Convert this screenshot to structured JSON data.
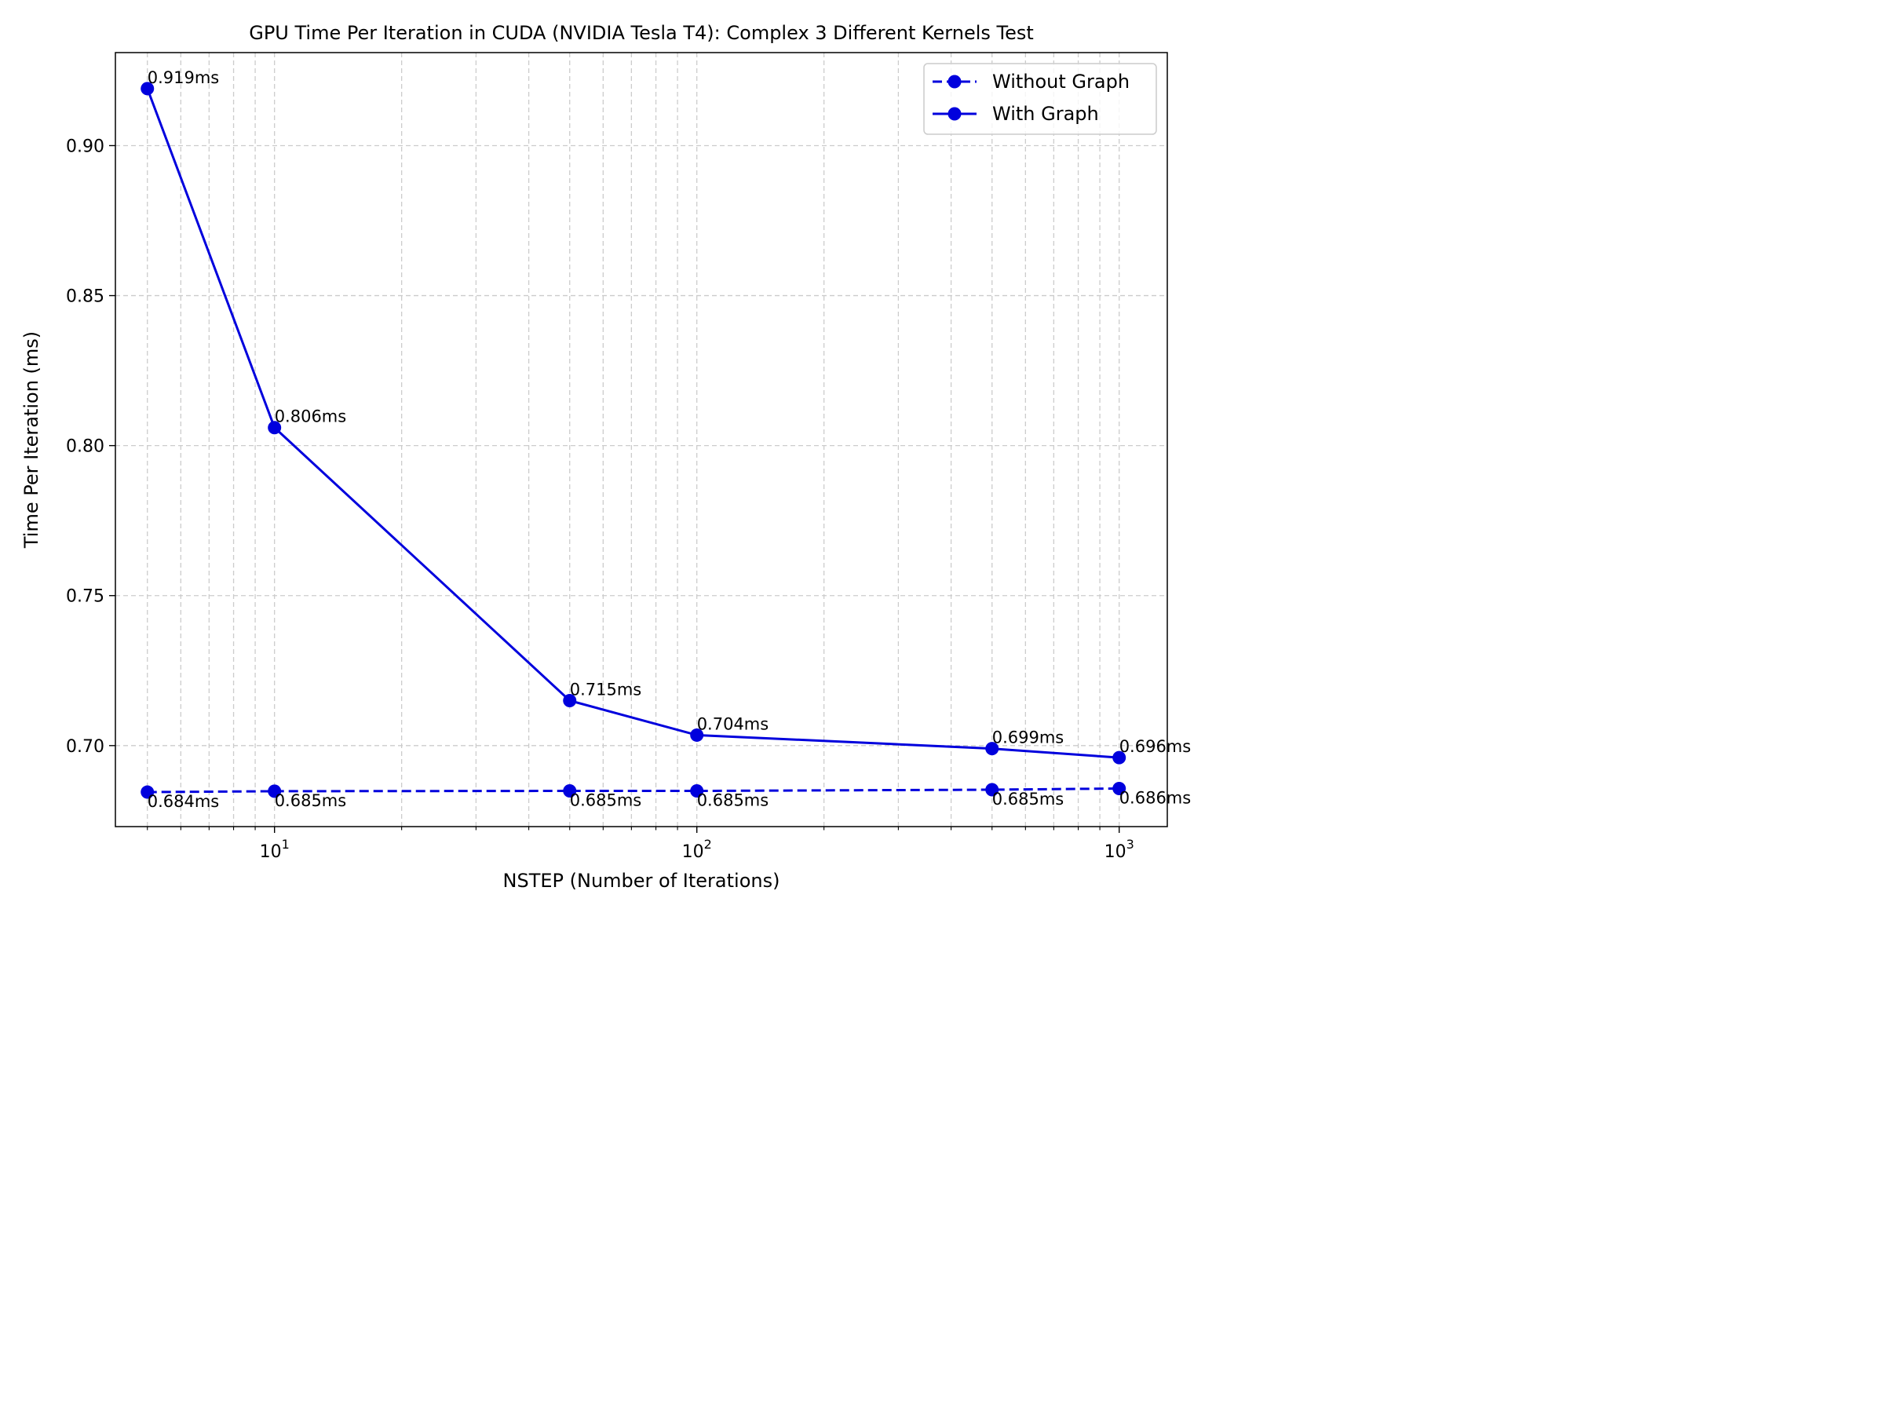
{
  "chart_data": {
    "type": "line",
    "title": "GPU Time Per Iteration in CUDA (NVIDIA Tesla T4): Complex 3 Different Kernels Test",
    "xlabel": "NSTEP (Number of Iterations)",
    "ylabel": "Time Per Iteration (ms)",
    "x_scale": "log",
    "xlim": [
      4.2,
      1300
    ],
    "ylim": [
      0.673,
      0.931
    ],
    "x_ticks": [
      {
        "value": 10,
        "base": "10",
        "exp": "1"
      },
      {
        "value": 100,
        "base": "10",
        "exp": "2"
      },
      {
        "value": 1000,
        "base": "10",
        "exp": "3"
      }
    ],
    "y_ticks": [
      {
        "value": 0.7,
        "label": "0.70"
      },
      {
        "value": 0.75,
        "label": "0.75"
      },
      {
        "value": 0.8,
        "label": "0.80"
      },
      {
        "value": 0.85,
        "label": "0.85"
      },
      {
        "value": 0.9,
        "label": "0.90"
      }
    ],
    "grid": true,
    "legend_position": "top-right",
    "x": [
      5,
      10,
      50,
      100,
      500,
      1000
    ],
    "series": [
      {
        "name": "Without Graph",
        "style": "dashed",
        "color": "#0000dd",
        "values": [
          0.6845,
          0.6848,
          0.6849,
          0.6849,
          0.6853,
          0.6857
        ],
        "labels": [
          "0.684ms",
          "0.685ms",
          "0.685ms",
          "0.685ms",
          "0.685ms",
          "0.686ms"
        ],
        "label_placement": "below"
      },
      {
        "name": "With Graph",
        "style": "solid",
        "color": "#0000dd",
        "values": [
          0.919,
          0.806,
          0.715,
          0.7035,
          0.699,
          0.696
        ],
        "labels": [
          "0.919ms",
          "0.806ms",
          "0.715ms",
          "0.704ms",
          "0.699ms",
          "0.696ms"
        ],
        "label_placement": "above"
      }
    ]
  }
}
